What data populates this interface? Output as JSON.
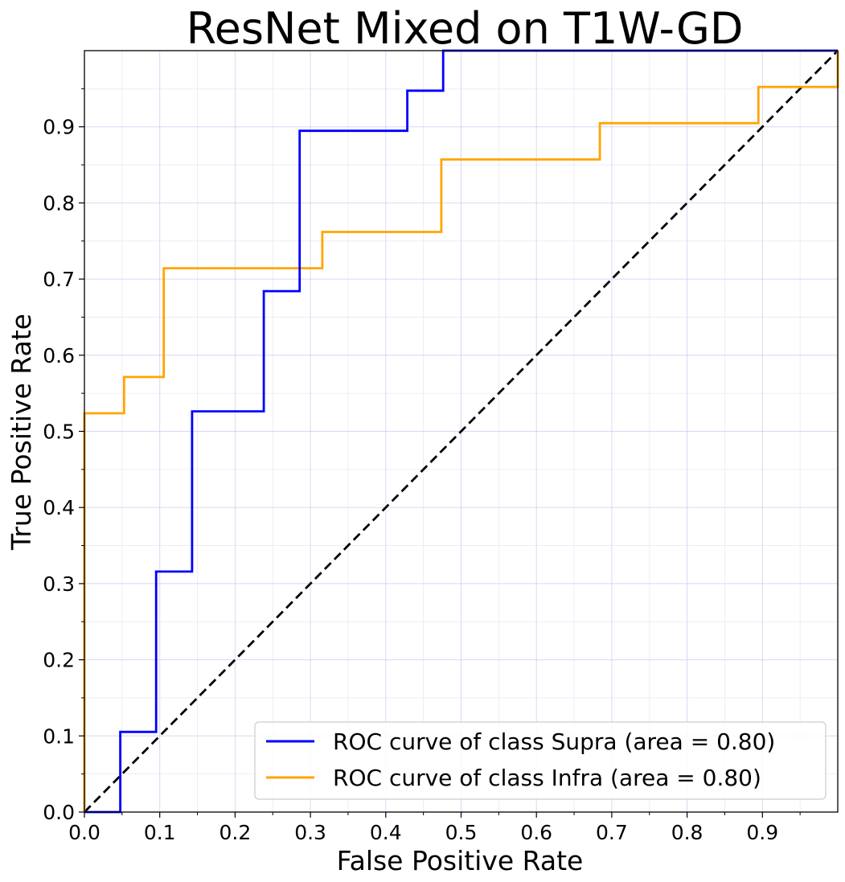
{
  "chart_data": {
    "type": "line",
    "title": "ResNet Mixed on T1W-GD",
    "xlabel": "False Positive Rate",
    "ylabel": "True Positive Rate",
    "xlim": [
      0,
      1
    ],
    "ylim": [
      0,
      1
    ],
    "xticks": [
      0.0,
      0.1,
      0.2,
      0.3,
      0.4,
      0.5,
      0.6,
      0.7,
      0.8,
      0.9
    ],
    "yticks": [
      0.0,
      0.1,
      0.2,
      0.3,
      0.4,
      0.5,
      0.6,
      0.7,
      0.8,
      0.9
    ],
    "xtick_labels": [
      "0.0",
      "0.1",
      "0.2",
      "0.3",
      "0.4",
      "0.5",
      "0.6",
      "0.7",
      "0.8",
      "0.9"
    ],
    "ytick_labels": [
      "0.0",
      "0.1",
      "0.2",
      "0.3",
      "0.4",
      "0.5",
      "0.6",
      "0.7",
      "0.8",
      "0.9"
    ],
    "grid": true,
    "minor_grid": true,
    "grid_color": "#c8c8f0",
    "legend_position": "bottom-right",
    "series": [
      {
        "name": "ROC curve of class Supra (area = 0.80)",
        "color": "#0000ff",
        "x": [
          0.0,
          0.0476,
          0.0476,
          0.0952,
          0.0952,
          0.1429,
          0.1429,
          0.2381,
          0.2381,
          0.2857,
          0.2857,
          0.4286,
          0.4286,
          0.4762,
          0.4762,
          1.0
        ],
        "y": [
          0.0,
          0.0,
          0.1053,
          0.1053,
          0.3158,
          0.3158,
          0.5263,
          0.5263,
          0.6842,
          0.6842,
          0.8947,
          0.8947,
          0.9474,
          0.9474,
          1.0,
          1.0
        ]
      },
      {
        "name": "ROC curve of class Infra (area = 0.80)",
        "color": "#ffa500",
        "x": [
          0.0,
          0.0,
          0.0526,
          0.0526,
          0.1053,
          0.1053,
          0.3158,
          0.3158,
          0.4737,
          0.4737,
          0.6842,
          0.6842,
          0.8947,
          0.8947,
          1.0,
          1.0
        ],
        "y": [
          0.0,
          0.5238,
          0.5238,
          0.5714,
          0.5714,
          0.7143,
          0.7143,
          0.7619,
          0.7619,
          0.8571,
          0.8571,
          0.9048,
          0.9048,
          0.9524,
          0.9524,
          1.0
        ]
      }
    ],
    "reference_line": {
      "x": [
        0,
        1
      ],
      "y": [
        0,
        1
      ],
      "color": "#000000",
      "style": "dashed"
    }
  }
}
